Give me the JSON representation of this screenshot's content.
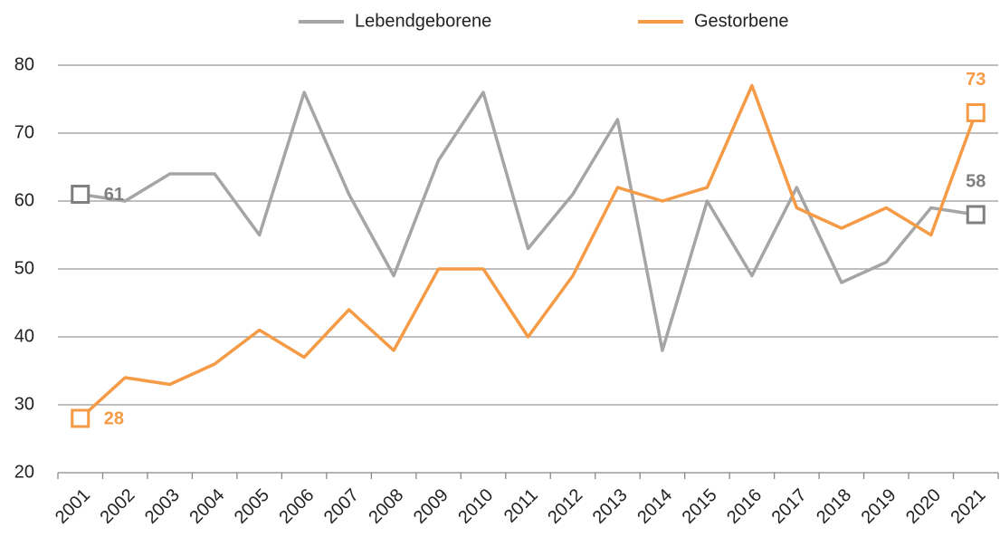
{
  "chart_data": {
    "type": "line",
    "categories": [
      "2001",
      "2002",
      "2003",
      "2004",
      "2005",
      "2006",
      "2007",
      "2008",
      "2009",
      "2010",
      "2011",
      "2012",
      "2013",
      "2014",
      "2015",
      "2016",
      "2017",
      "2018",
      "2019",
      "2020",
      "2021"
    ],
    "series": [
      {
        "name": "Lebendgeborene",
        "color": "#a5a5a5",
        "values": [
          61,
          60,
          64,
          64,
          55,
          76,
          61,
          49,
          66,
          76,
          53,
          61,
          72,
          38,
          60,
          49,
          62,
          48,
          51,
          59,
          58
        ]
      },
      {
        "name": "Gestorbene",
        "color": "#f59a45",
        "values": [
          28,
          34,
          33,
          36,
          41,
          37,
          44,
          38,
          50,
          50,
          40,
          49,
          62,
          60,
          62,
          77,
          59,
          56,
          59,
          55,
          73
        ]
      }
    ],
    "ylim": [
      20,
      80
    ],
    "yticks": [
      20,
      30,
      40,
      50,
      60,
      70,
      80
    ],
    "grid": true,
    "legend": "top"
  }
}
